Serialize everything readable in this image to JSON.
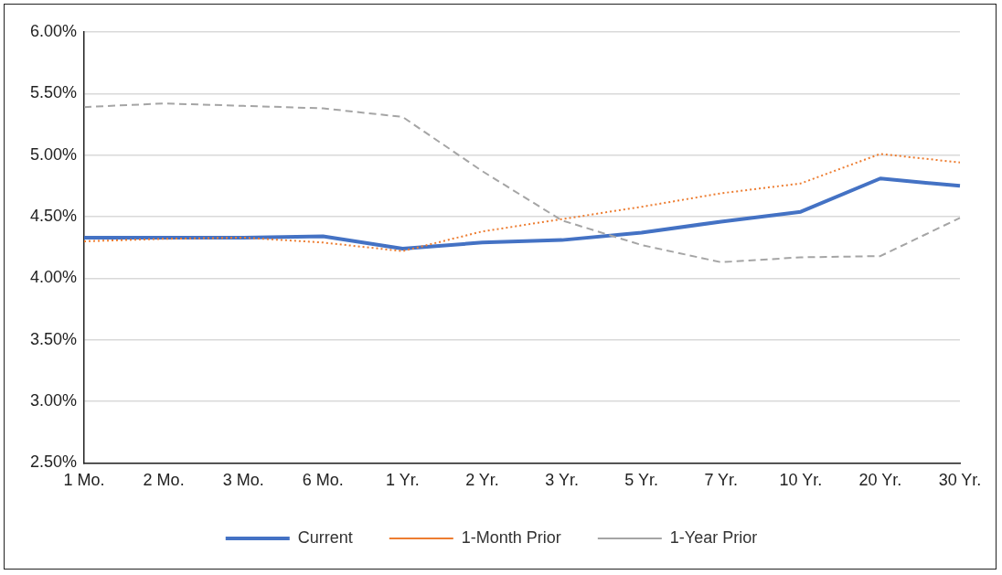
{
  "chart_data": {
    "type": "line",
    "categories": [
      "1 Mo.",
      "2 Mo.",
      "3 Mo.",
      "6 Mo.",
      "1 Yr.",
      "2 Yr.",
      "3 Yr.",
      "5 Yr.",
      "7 Yr.",
      "10 Yr.",
      "20 Yr.",
      "30 Yr."
    ],
    "series": [
      {
        "name": "Current",
        "color": "#4472c4",
        "line_style": "solid",
        "values": [
          4.33,
          4.33,
          4.33,
          4.34,
          4.24,
          4.29,
          4.31,
          4.37,
          4.46,
          4.54,
          4.81,
          4.75
        ]
      },
      {
        "name": "1-Month Prior",
        "color": "#ed7d31",
        "line_style": "dotted",
        "values": [
          4.3,
          4.32,
          4.33,
          4.29,
          4.22,
          4.38,
          4.48,
          4.58,
          4.69,
          4.77,
          5.01,
          4.94
        ]
      },
      {
        "name": "1-Year Prior",
        "color": "#a5a5a5",
        "line_style": "dashed",
        "values": [
          5.39,
          5.42,
          5.4,
          5.38,
          5.31,
          4.87,
          4.47,
          4.27,
          4.13,
          4.17,
          4.18,
          4.49
        ]
      }
    ],
    "ylim": [
      2.5,
      6
    ],
    "yticks": [
      {
        "value": 2.5,
        "label": "2.50%"
      },
      {
        "value": 3,
        "label": "3.00%"
      },
      {
        "value": 3.5,
        "label": "3.50%"
      },
      {
        "value": 4,
        "label": "4.00%"
      },
      {
        "value": 4.5,
        "label": "4.50%"
      },
      {
        "value": 5,
        "label": "5.00%"
      },
      {
        "value": 5.5,
        "label": "5.50%"
      },
      {
        "value": 6,
        "label": "6.00%"
      }
    ],
    "grid": "y",
    "legend": "bottom",
    "marker": "none"
  }
}
